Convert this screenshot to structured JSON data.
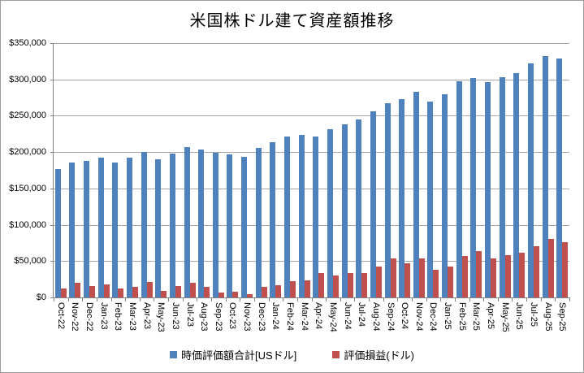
{
  "title": "米国株ドル建て資産額推移",
  "colors": {
    "market_value": "#4F81BD",
    "gain_loss": "#C0504D",
    "gridline": "#A6A6A6",
    "axis": "#808080",
    "text": "#000000",
    "chart_border": "#9C9C9C"
  },
  "legend": {
    "items": [
      {
        "label": "時価評価額合計[USドル]",
        "color": "#4F81BD"
      },
      {
        "label": "評価損益(ドル)",
        "color": "#C0504D"
      }
    ]
  },
  "y_axis": {
    "tick_labels": [
      "$0",
      "$50,000",
      "$100,000",
      "$150,000",
      "$200,000",
      "$250,000",
      "$300,000",
      "$350,000"
    ]
  },
  "chart_data": {
    "type": "bar",
    "title": "米国株ドル建て資産額推移",
    "xlabel": "",
    "ylabel": "",
    "ylim": [
      0,
      350000
    ],
    "y_tick_step": 50000,
    "grid": "horizontal",
    "legend_position": "bottom",
    "x_label_rotation": 90,
    "categories": [
      "Oct-22",
      "Nov-22",
      "Dec-22",
      "Jan-23",
      "Feb-23",
      "Mar-23",
      "Apr-23",
      "May-23",
      "Jun-23",
      "Jul-23",
      "Aug-23",
      "Sep-23",
      "Oct-23",
      "Nov-23",
      "Dec-23",
      "Jan-24",
      "Feb-24",
      "Mar-24",
      "Apr-24",
      "May-24",
      "Jun-24",
      "Jul-24",
      "Aug-24",
      "Sep-24",
      "Oct-24",
      "Nov-24",
      "Dec-24",
      "Jan-25",
      "Feb-25",
      "Mar-25",
      "Apr-25",
      "May-25",
      "Jun-25",
      "Jul-25",
      "Aug-25",
      "Sep-25"
    ],
    "series": [
      {
        "name": "時価評価額合計[USドル]",
        "color": "#4F81BD",
        "values": [
          177000,
          186000,
          188000,
          192000,
          186000,
          192000,
          200000,
          190000,
          198000,
          207000,
          204000,
          199000,
          197000,
          194000,
          206000,
          214000,
          221000,
          224000,
          221000,
          232000,
          238000,
          245000,
          256000,
          267000,
          273000,
          283000,
          270000,
          279000,
          297000,
          302000,
          296000,
          303000,
          309000,
          322000,
          332000,
          329000
        ]
      },
      {
        "name": "評価損益(ドル)",
        "color": "#C0504D",
        "values": [
          12000,
          20000,
          16000,
          18000,
          12000,
          15000,
          21000,
          9000,
          16000,
          20000,
          15000,
          7000,
          8000,
          4000,
          15000,
          17000,
          22000,
          24000,
          34000,
          30000,
          34000,
          34000,
          43000,
          54000,
          47000,
          54000,
          38000,
          42000,
          57000,
          64000,
          54000,
          58000,
          62000,
          71000,
          81000,
          76000
        ]
      }
    ]
  }
}
